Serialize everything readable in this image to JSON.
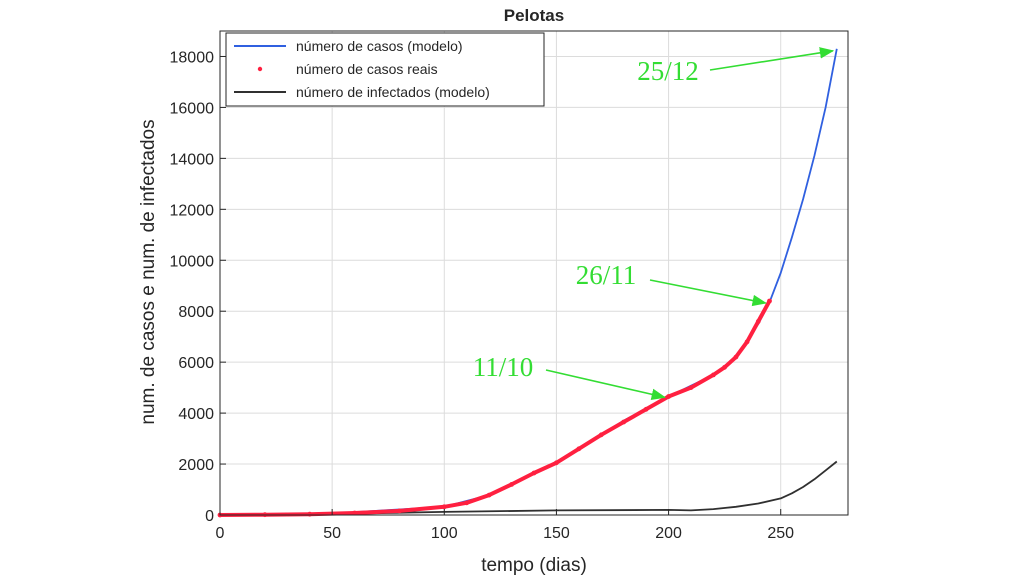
{
  "chart_data": {
    "type": "line",
    "title": "Pelotas",
    "xlabel": "tempo (dias)",
    "ylabel": "num. de casos e num. de infectados",
    "xlim": [
      0,
      280
    ],
    "ylim": [
      0,
      19000
    ],
    "xticks": [
      0,
      50,
      100,
      150,
      200,
      250
    ],
    "yticks": [
      0,
      2000,
      4000,
      6000,
      8000,
      10000,
      12000,
      14000,
      16000,
      18000
    ],
    "grid": true,
    "legend_position": "top-left",
    "series": [
      {
        "name": "número de casos (modelo)",
        "style": "line",
        "color": "#3060e0",
        "x": [
          0,
          50,
          100,
          120,
          150,
          180,
          200,
          220,
          230,
          240,
          245,
          250,
          255,
          260,
          265,
          270,
          275
        ],
        "y": [
          0,
          60,
          320,
          780,
          2050,
          3700,
          4650,
          5500,
          6200,
          7500,
          8350,
          9500,
          10900,
          12400,
          14100,
          16000,
          18300
        ]
      },
      {
        "name": "número de casos reais",
        "style": "points",
        "color": "#ff2040",
        "x": [
          0,
          20,
          40,
          60,
          80,
          100,
          110,
          120,
          130,
          140,
          150,
          160,
          170,
          180,
          190,
          200,
          210,
          220,
          225,
          230,
          235,
          240,
          245
        ],
        "y": [
          0,
          10,
          30,
          80,
          160,
          320,
          480,
          780,
          1200,
          1650,
          2050,
          2600,
          3150,
          3650,
          4150,
          4650,
          5000,
          5500,
          5800,
          6200,
          6800,
          7600,
          8400
        ]
      },
      {
        "name": "número de infectados (modelo)",
        "style": "line",
        "color": "#303030",
        "x": [
          0,
          50,
          100,
          150,
          200,
          210,
          220,
          230,
          240,
          250,
          255,
          260,
          265,
          270,
          275
        ],
        "y": [
          0,
          40,
          120,
          180,
          200,
          180,
          230,
          320,
          450,
          650,
          850,
          1100,
          1400,
          1750,
          2100
        ]
      }
    ],
    "annotations": [
      {
        "text": "25/12",
        "x": 275,
        "y": 18300,
        "color": "#33dd33"
      },
      {
        "text": "26/11",
        "x": 245,
        "y": 8400,
        "color": "#33dd33"
      },
      {
        "text": "11/10",
        "x": 200,
        "y": 4700,
        "color": "#33dd33"
      }
    ]
  }
}
